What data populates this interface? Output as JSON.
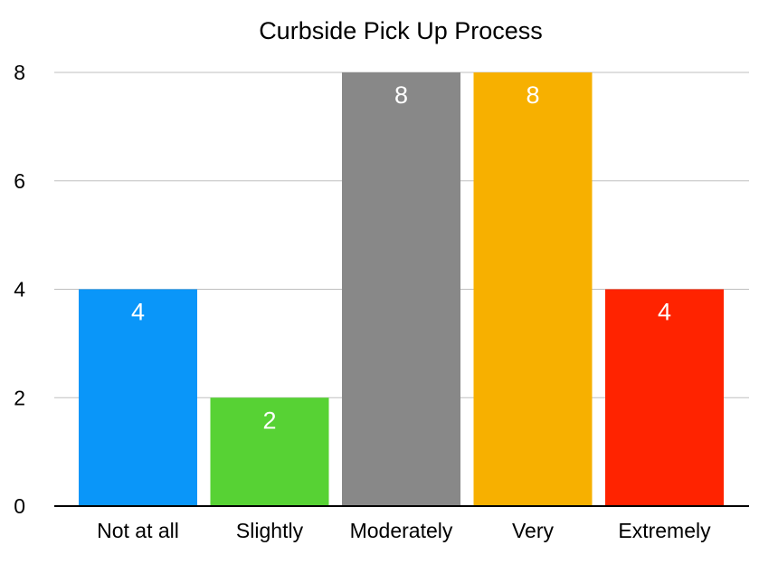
{
  "chart_data": {
    "type": "bar",
    "title": "Curbside Pick Up Process",
    "xlabel": "",
    "ylabel": "",
    "categories": [
      "Not at all",
      "Slightly",
      "Moderately",
      "Very",
      "Extremely"
    ],
    "values": [
      4,
      2,
      8,
      8,
      4
    ],
    "bar_colors": [
      "#0A96F9",
      "#57D234",
      "#888888",
      "#F7B000",
      "#FF2300"
    ],
    "ylim": [
      0,
      8
    ],
    "yticks": [
      0,
      2,
      4,
      6,
      8
    ],
    "grid": true,
    "legend": "none",
    "data_labels": true
  }
}
